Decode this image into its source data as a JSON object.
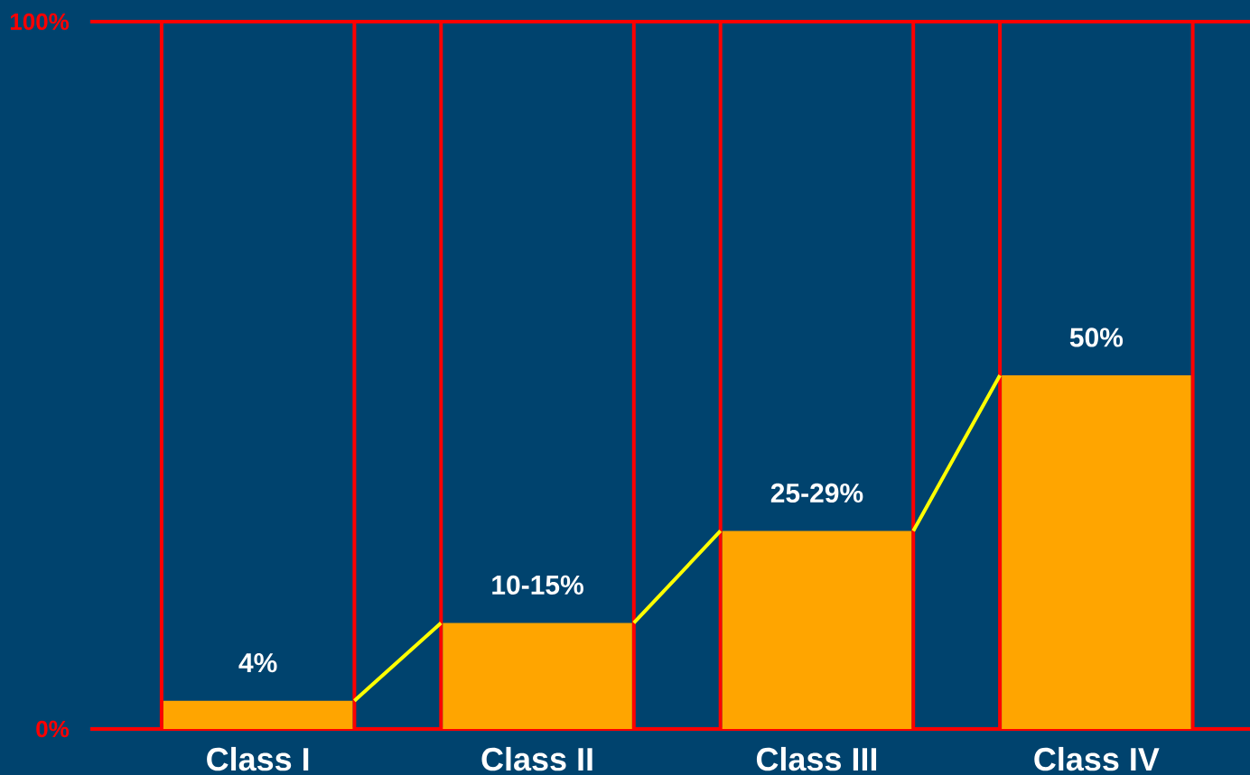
{
  "chart_data": {
    "type": "bar",
    "categories": [
      "Class I",
      "Class II",
      "Class III",
      "Class IV"
    ],
    "series": [
      {
        "color": "#ffa500",
        "values": [
          4,
          15,
          28,
          50
        ],
        "value_labels": [
          "4%",
          null,
          null,
          "50%"
        ]
      },
      {
        "color": "#ff0000",
        "values": [
          100,
          100,
          100,
          100
        ],
        "line_style": "solid"
      }
    ],
    "annotations": [
      {
        "text": "10-15%",
        "x": "Class II",
        "y": 15
      },
      {
        "text": "25-29%",
        "x": "Class III",
        "y": 28
      }
    ],
    "ylim": [
      0,
      100
    ],
    "yticks": [
      {
        "value": 0,
        "label": "0%"
      },
      {
        "value": 100,
        "label": "100%"
      }
    ]
  }
}
